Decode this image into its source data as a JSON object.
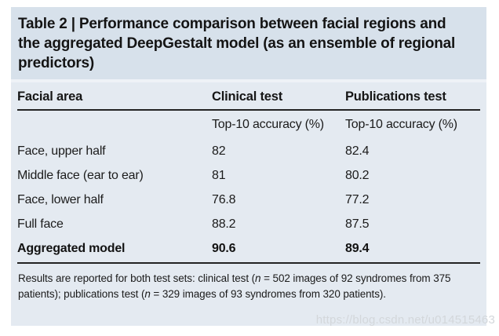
{
  "panel": {
    "title_lines": [
      "Table 2 | Performance comparison between facial regions and",
      "the aggregated DeepGestalt model (as an ensemble of regional",
      "predictors)"
    ]
  },
  "table": {
    "columns": [
      "Facial area",
      "Clinical test",
      "Publications test"
    ],
    "subheader": {
      "clinical": "Top-10 accuracy (%)",
      "publications": "Top-10 accuracy (%)"
    },
    "rows": [
      {
        "area": "Face, upper half",
        "clinical": "82",
        "publications": "82.4"
      },
      {
        "area": "Middle face (ear to ear)",
        "clinical": "81",
        "publications": "80.2"
      },
      {
        "area": "Face, lower half",
        "clinical": "76.8",
        "publications": "77.2"
      },
      {
        "area": "Full face",
        "clinical": "88.2",
        "publications": "87.5"
      },
      {
        "area": "Aggregated model",
        "clinical": "90.6",
        "publications": "89.4"
      }
    ]
  },
  "footnote": {
    "lines": [
      {
        "pre": "Results are reported for both test sets: clinical test (",
        "n": "n",
        "post": " = 502 images of 92 syndromes from 375"
      },
      {
        "pre": "patients); publications test (",
        "n": "n",
        "post": " = 329 images of 93 syndromes from 320 patients)."
      }
    ]
  },
  "watermark": "https://blog.csdn.net/u014515463",
  "colors": {
    "title_band_bg": "#d7e1eb",
    "table_bg": "#e4eaf1",
    "rule": "#232323",
    "text": "#1b1b1b",
    "watermark": "#d3d7db",
    "page_bg": "#ffffff"
  }
}
